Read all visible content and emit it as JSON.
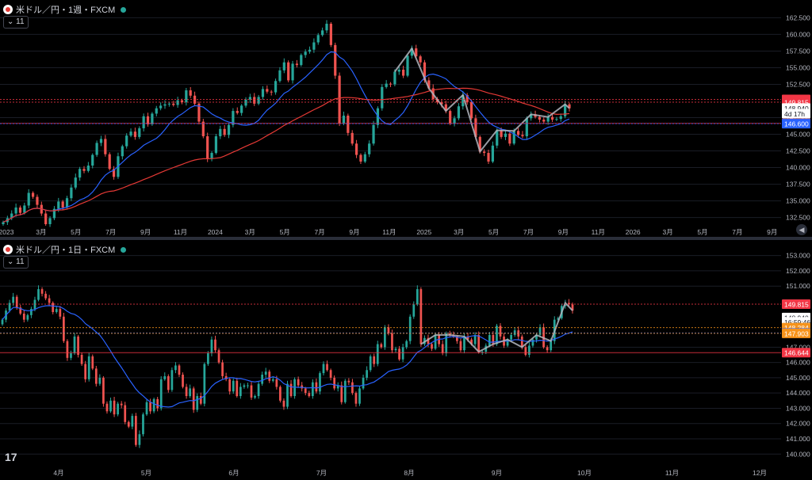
{
  "colors": {
    "up": "#26a69a",
    "down": "#ef5350",
    "ma_blue": "#2962ff",
    "ma_red": "#e53935",
    "pattern": "#b2b5be",
    "grid": "#1a1d26",
    "axis_text": "#b2b5be",
    "tag_red": "#f23645",
    "tag_blue": "#2962ff",
    "tag_orange": "#f7931a",
    "tag_white": "#ffffff"
  },
  "pane1": {
    "title": "米ドル／円・1週・FXCM",
    "indicator_toggle": "11",
    "chart_data": {
      "type": "candlestick",
      "timeframe": "weekly",
      "ylim": [
        131.5,
        163.5
      ],
      "y_ticks": [
        132.5,
        135.0,
        137.5,
        140.0,
        142.5,
        145.0,
        147.5,
        152.5,
        155.0,
        157.5,
        160.0,
        162.5
      ],
      "y_tick_labels": [
        "132.500",
        "135.000",
        "137.500",
        "140.000",
        "142.500",
        "145.000",
        "147.500",
        "152.500",
        "155.000",
        "157.500",
        "160.000",
        "162.500"
      ],
      "x_tick_labels": [
        "2023",
        "3月",
        "5月",
        "7月",
        "9月",
        "11月",
        "2024",
        "3月",
        "5月",
        "7月",
        "9月",
        "11月",
        "2025",
        "3月",
        "5月",
        "7月",
        "9月",
        "11月",
        "2026",
        "3月",
        "5月",
        "7月",
        "9月"
      ],
      "closes": [
        131.8,
        132.4,
        133.1,
        134.0,
        133.2,
        134.3,
        136.2,
        135.6,
        134.4,
        133.1,
        131.5,
        132.4,
        133.8,
        134.9,
        134.0,
        135.4,
        137.0,
        138.5,
        139.8,
        139.5,
        140.3,
        141.9,
        143.7,
        144.3,
        142.0,
        139.8,
        138.6,
        141.7,
        143.2,
        144.8,
        145.4,
        144.6,
        145.9,
        147.7,
        146.5,
        148.1,
        148.9,
        149.3,
        149.5,
        149.6,
        149.4,
        150.1,
        149.8,
        151.6,
        150.8,
        149.6,
        146.9,
        144.7,
        141.3,
        142.2,
        144.7,
        145.8,
        144.9,
        146.4,
        148.5,
        148.2,
        149.3,
        150.2,
        150.6,
        149.6,
        150.6,
        151.8,
        151.4,
        151.3,
        153.0,
        154.6,
        155.8,
        153.1,
        155.6,
        155.4,
        156.9,
        157.4,
        157.7,
        158.8,
        159.9,
        160.6,
        161.6,
        158.4,
        153.8,
        146.6,
        147.8,
        145.2,
        143.6,
        141.9,
        140.9,
        142.0,
        143.6,
        146.4,
        148.9,
        152.1,
        152.6,
        152.5,
        154.4,
        154.7,
        153.8,
        156.8,
        157.9,
        156.7,
        155.8,
        153.1,
        151.9,
        150.3,
        149.8,
        149.5,
        148.5,
        146.6,
        147.4,
        149.2,
        150.9,
        149.8,
        147.4,
        144.6,
        142.4,
        142.2,
        140.9,
        143.3,
        145.6,
        144.6,
        145.1,
        143.6,
        145.5,
        144.9,
        144.7,
        147.4,
        148.0,
        147.6,
        147.2,
        146.9,
        147.6,
        147.2,
        147.3,
        147.7,
        149.5,
        148.9
      ]
    },
    "price_tags": [
      {
        "label": "150.237",
        "value": 150.237,
        "color": "#f23645"
      },
      {
        "label": "149.815",
        "value": 149.815,
        "color": "#f23645"
      },
      {
        "label": "148.940",
        "value": 148.94,
        "color": "#ffffff"
      },
      {
        "label": "4d 17h",
        "value": 148.1,
        "color": "#ffffff"
      },
      {
        "label": "146.644",
        "value": 146.644,
        "color": "#f23645"
      },
      {
        "label": "146.600",
        "value": 146.6,
        "color": "#2962ff"
      }
    ]
  },
  "pane2": {
    "title": "米ドル／円・1日・FXCM",
    "indicator_toggle": "11",
    "chart_data": {
      "type": "candlestick",
      "timeframe": "daily",
      "ylim": [
        139.6,
        153.5
      ],
      "y_ticks": [
        140.0,
        141.0,
        142.0,
        143.0,
        144.0,
        145.0,
        146.0,
        147.0,
        151.0,
        152.0,
        153.0
      ],
      "y_tick_labels": [
        "140.000",
        "141.000",
        "142.000",
        "143.000",
        "144.000",
        "145.000",
        "146.000",
        "147.000",
        "151.000",
        "152.000",
        "153.000"
      ],
      "x_tick_labels": [
        "4月",
        "5月",
        "6月",
        "7月",
        "8月",
        "9月",
        "10月",
        "11月",
        "12月"
      ],
      "closes": [
        148.8,
        149.4,
        149.9,
        150.3,
        149.6,
        149.2,
        148.8,
        149.1,
        149.5,
        150.1,
        150.8,
        150.5,
        150.2,
        149.9,
        149.3,
        149.5,
        149.0,
        147.4,
        146.3,
        146.6,
        147.7,
        146.5,
        145.9,
        144.9,
        146.4,
        145.6,
        144.6,
        145.0,
        143.3,
        142.8,
        143.5,
        142.6,
        143.3,
        143.2,
        142.1,
        141.8,
        142.5,
        140.6,
        141.3,
        142.6,
        143.4,
        142.8,
        143.6,
        143.0,
        144.9,
        145.1,
        144.2,
        145.5,
        145.8,
        145.2,
        144.4,
        143.8,
        144.3,
        142.9,
        143.8,
        143.3,
        145.9,
        146.6,
        147.5,
        146.8,
        146.0,
        145.1,
        144.9,
        144.1,
        144.8,
        143.8,
        144.4,
        144.5,
        144.5,
        143.7,
        143.8,
        144.6,
        145.2,
        145.4,
        144.8,
        144.9,
        144.4,
        143.5,
        143.1,
        144.6,
        143.8,
        144.9,
        144.5,
        144.3,
        144.0,
        143.8,
        144.7,
        144.1,
        145.3,
        145.9,
        145.5,
        145.0,
        144.3,
        144.5,
        143.4,
        144.8,
        144.7,
        144.0,
        143.3,
        144.3,
        145.0,
        145.5,
        146.4,
        145.9,
        147.2,
        147.0,
        148.3,
        147.9,
        146.8,
        146.9,
        146.2,
        147.0,
        147.4,
        149.0,
        149.8,
        150.8,
        147.2,
        147.6,
        147.2,
        146.9,
        147.8,
        147.2,
        146.6,
        147.9,
        147.8,
        147.7,
        147.4,
        146.8,
        147.7,
        147.5,
        147.2,
        147.8,
        146.7,
        146.7,
        147.1,
        147.8,
        147.2,
        148.4,
        147.7,
        147.1,
        147.5,
        147.8,
        148.1,
        147.7,
        147.0,
        146.5,
        147.1,
        147.5,
        147.8,
        148.3,
        147.0,
        146.8,
        147.4,
        148.8,
        148.9,
        149.7,
        149.9,
        149.8,
        149.4
      ]
    },
    "price_tags": [
      {
        "label": "149.815",
        "value": 149.815,
        "color": "#f23645"
      },
      {
        "label": "148.940",
        "value": 148.94,
        "color": "#ffffff"
      },
      {
        "label": "16:59:46",
        "value": 148.66,
        "color": "#ffffff"
      },
      {
        "label": "148.284",
        "value": 148.284,
        "color": "#f7931a"
      },
      {
        "label": "147.929",
        "value": 147.929,
        "color": "#2962ff"
      },
      {
        "label": "147.903",
        "value": 147.903,
        "color": "#f7931a"
      },
      {
        "label": "146.644",
        "value": 146.644,
        "color": "#f23645"
      }
    ]
  },
  "logo_text": "17",
  "scroll_button": "◀"
}
